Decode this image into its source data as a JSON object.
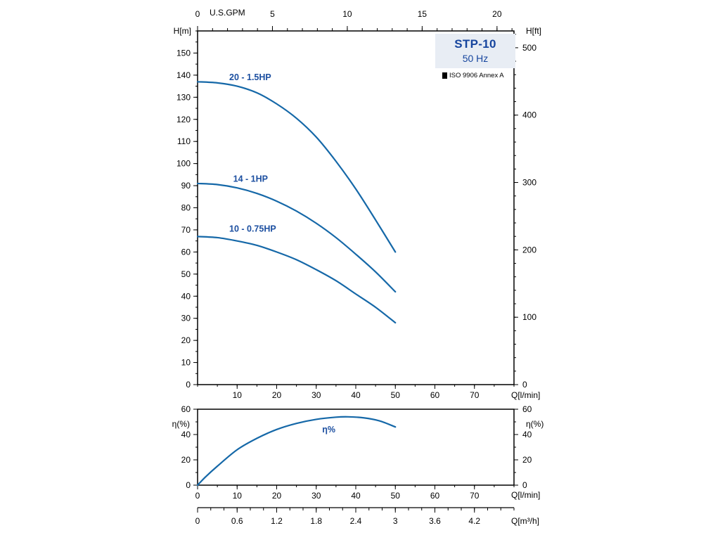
{
  "info_box": {
    "model": "STP-10",
    "frequency": "50 Hz",
    "standard": "ISO 9906 Annex A"
  },
  "colors": {
    "curve": "#1568a8",
    "series_label": "#1c4fa0",
    "title_text": "#16459e",
    "box_bg": "#e8edf4",
    "axis": "#000000"
  },
  "chart_data": [
    {
      "id": "head",
      "type": "line",
      "title": "Pump head curves STP-10 50 Hz",
      "x": {
        "unit": "Q[l/min]",
        "min": 0,
        "max": 80,
        "major_ticks": [
          10,
          20,
          30,
          40,
          50,
          60,
          70
        ],
        "minor_step": 5
      },
      "x_top": {
        "unit": "U.S.GPM",
        "major_ticks": [
          0,
          5,
          10,
          15,
          20
        ],
        "minor_step": 1,
        "factor": 3.785411784
      },
      "y": {
        "unit": "H[m]",
        "min": 0,
        "max": 160,
        "major_ticks": [
          0,
          10,
          20,
          30,
          40,
          50,
          60,
          70,
          80,
          90,
          100,
          110,
          120,
          130,
          140,
          150
        ],
        "minor_step": 5
      },
      "y_right": {
        "unit": "H[ft]",
        "major_ticks": [
          0,
          100,
          200,
          300,
          400,
          500
        ],
        "minor_step": 20,
        "factor": 0.3048
      },
      "series": [
        {
          "name": "20 - 1.5HP",
          "label_at": {
            "x": 8,
            "y": 139
          },
          "points": [
            [
              0,
              137
            ],
            [
              5,
              136.5
            ],
            [
              10,
              135
            ],
            [
              15,
              132
            ],
            [
              20,
              127
            ],
            [
              25,
              120.5
            ],
            [
              30,
              112
            ],
            [
              35,
              101
            ],
            [
              40,
              88.5
            ],
            [
              45,
              74.5
            ],
            [
              50,
              60
            ]
          ]
        },
        {
          "name": "14 - 1HP",
          "label_at": {
            "x": 9,
            "y": 93
          },
          "points": [
            [
              0,
              91
            ],
            [
              5,
              90.5
            ],
            [
              10,
              89
            ],
            [
              15,
              86.5
            ],
            [
              20,
              83
            ],
            [
              25,
              78.5
            ],
            [
              30,
              73
            ],
            [
              35,
              66.5
            ],
            [
              40,
              59
            ],
            [
              45,
              51
            ],
            [
              50,
              42
            ]
          ]
        },
        {
          "name": "10 - 0.75HP",
          "label_at": {
            "x": 8,
            "y": 70.5
          },
          "points": [
            [
              0,
              67
            ],
            [
              5,
              66.5
            ],
            [
              10,
              65
            ],
            [
              15,
              63
            ],
            [
              20,
              60
            ],
            [
              25,
              56.5
            ],
            [
              30,
              52
            ],
            [
              35,
              47
            ],
            [
              40,
              41
            ],
            [
              45,
              35
            ],
            [
              50,
              28
            ]
          ]
        }
      ]
    },
    {
      "id": "eff",
      "type": "line",
      "title": "Efficiency curve",
      "x": {
        "unit": "Q[l/min]",
        "min": 0,
        "max": 80,
        "major_ticks": [
          0,
          10,
          20,
          30,
          40,
          50,
          60,
          70
        ],
        "minor_step": 5
      },
      "y": {
        "unit": "η(%)",
        "min": 0,
        "max": 60,
        "major_ticks": [
          0,
          20,
          40,
          60
        ],
        "minor_step": 10
      },
      "y_right": {
        "unit": "η(%)",
        "major_ticks": [
          0,
          20,
          40,
          60
        ],
        "minor_step": 10,
        "factor": 1
      },
      "series": [
        {
          "name": "η%",
          "label_at": {
            "x": 31.5,
            "y": 44
          },
          "points": [
            [
              0,
              0
            ],
            [
              2,
              6.5
            ],
            [
              5,
              15
            ],
            [
              10,
              28
            ],
            [
              15,
              37
            ],
            [
              20,
              44
            ],
            [
              25,
              48.8
            ],
            [
              30,
              52
            ],
            [
              35,
              53.7
            ],
            [
              38,
              54
            ],
            [
              42,
              53.2
            ],
            [
              46,
              50.8
            ],
            [
              50,
              46
            ]
          ]
        }
      ]
    }
  ],
  "m3h_axis": {
    "unit": "Q[m³/h]",
    "min": 0,
    "max": 4.8,
    "major_ticks": [
      0,
      0.6,
      1.2,
      1.8,
      2.4,
      3,
      3.6,
      4.2
    ],
    "labels": [
      "0",
      "0.6",
      "1.2",
      "1.8",
      "2.4",
      "3",
      "3.6",
      "4.2"
    ],
    "minor_step": 0.2
  }
}
